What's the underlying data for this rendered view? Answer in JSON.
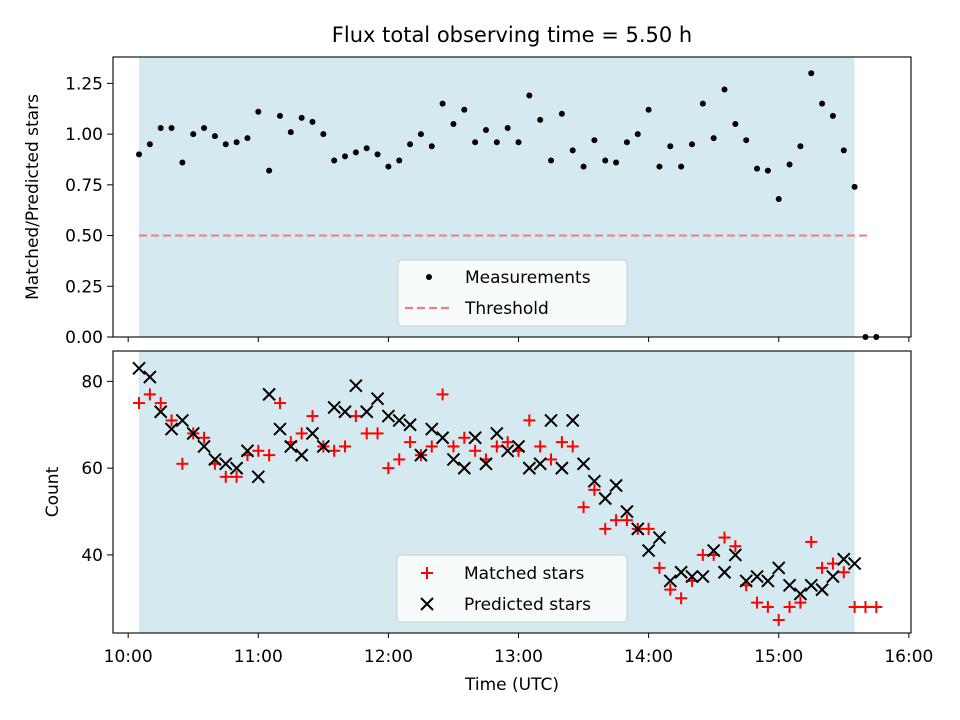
{
  "chart_data": {
    "title": "Flux total observing time = 5.50 h",
    "xlabel": "Time (UTC)",
    "x_ticks": [
      "10:00",
      "11:00",
      "12:00",
      "13:00",
      "14:00",
      "15:00",
      "16:00"
    ],
    "xlim": [
      "09:53",
      "16:01"
    ],
    "observing_window": {
      "start": "10:05",
      "end": "15:35",
      "color": "#d4eaf0"
    },
    "panels": [
      {
        "type": "scatter",
        "ylabel": "Matched/Predicted stars",
        "ylim": [
          0,
          1.38
        ],
        "y_ticks": [
          "0.00",
          "0.25",
          "0.50",
          "0.75",
          "1.00",
          "1.25"
        ],
        "legend": {
          "position": "lower-center",
          "entries": [
            "Measurements",
            "Threshold"
          ]
        },
        "threshold": {
          "name": "Threshold",
          "value": 0.5,
          "x_start": "10:05",
          "x_end": "15:41",
          "color": "#f08080"
        },
        "series": [
          {
            "name": "Measurements",
            "marker": "dot",
            "color": "#000000",
            "points": [
              [
                "10:05",
                0.9
              ],
              [
                "10:10",
                0.95
              ],
              [
                "10:15",
                1.03
              ],
              [
                "10:20",
                1.03
              ],
              [
                "10:25",
                0.86
              ],
              [
                "10:30",
                1.0
              ],
              [
                "10:35",
                1.03
              ],
              [
                "10:40",
                0.99
              ],
              [
                "10:45",
                0.95
              ],
              [
                "10:50",
                0.96
              ],
              [
                "10:55",
                0.98
              ],
              [
                "11:00",
                1.11
              ],
              [
                "11:05",
                0.82
              ],
              [
                "11:10",
                1.09
              ],
              [
                "11:15",
                1.01
              ],
              [
                "11:20",
                1.08
              ],
              [
                "11:25",
                1.06
              ],
              [
                "11:30",
                1.0
              ],
              [
                "11:35",
                0.87
              ],
              [
                "11:40",
                0.89
              ],
              [
                "11:45",
                0.91
              ],
              [
                "11:50",
                0.93
              ],
              [
                "11:55",
                0.9
              ],
              [
                "12:00",
                0.84
              ],
              [
                "12:05",
                0.87
              ],
              [
                "12:10",
                0.95
              ],
              [
                "12:15",
                1.0
              ],
              [
                "12:20",
                0.94
              ],
              [
                "12:25",
                1.15
              ],
              [
                "12:30",
                1.05
              ],
              [
                "12:35",
                1.12
              ],
              [
                "12:40",
                0.96
              ],
              [
                "12:45",
                1.02
              ],
              [
                "12:50",
                0.96
              ],
              [
                "12:55",
                1.03
              ],
              [
                "13:00",
                0.96
              ],
              [
                "13:05",
                1.19
              ],
              [
                "13:10",
                1.07
              ],
              [
                "13:15",
                0.87
              ],
              [
                "13:20",
                1.1
              ],
              [
                "13:25",
                0.92
              ],
              [
                "13:30",
                0.84
              ],
              [
                "13:35",
                0.97
              ],
              [
                "13:40",
                0.87
              ],
              [
                "13:45",
                0.86
              ],
              [
                "13:50",
                0.96
              ],
              [
                "13:55",
                1.0
              ],
              [
                "14:00",
                1.12
              ],
              [
                "14:05",
                0.84
              ],
              [
                "14:10",
                0.94
              ],
              [
                "14:15",
                0.84
              ],
              [
                "14:20",
                0.95
              ],
              [
                "14:25",
                1.15
              ],
              [
                "14:30",
                0.98
              ],
              [
                "14:35",
                1.22
              ],
              [
                "14:40",
                1.05
              ],
              [
                "14:45",
                0.97
              ],
              [
                "14:50",
                0.83
              ],
              [
                "14:55",
                0.82
              ],
              [
                "15:00",
                0.68
              ],
              [
                "15:05",
                0.85
              ],
              [
                "15:10",
                0.94
              ],
              [
                "15:15",
                1.3
              ],
              [
                "15:20",
                1.15
              ],
              [
                "15:25",
                1.09
              ],
              [
                "15:30",
                0.92
              ],
              [
                "15:35",
                0.74
              ],
              [
                "15:40",
                0.0
              ],
              [
                "15:45",
                0.0
              ]
            ]
          }
        ]
      },
      {
        "type": "scatter",
        "ylabel": "Count",
        "ylim": [
          22,
          87
        ],
        "y_ticks": [
          "40",
          "60",
          "80"
        ],
        "legend": {
          "position": "lower-center",
          "entries": [
            "Matched stars",
            "Predicted stars"
          ]
        },
        "series": [
          {
            "name": "Matched stars",
            "marker": "plus",
            "color": "#ff0000",
            "points": [
              [
                "10:05",
                75
              ],
              [
                "10:10",
                77
              ],
              [
                "10:15",
                75
              ],
              [
                "10:20",
                71
              ],
              [
                "10:25",
                61
              ],
              [
                "10:30",
                68
              ],
              [
                "10:35",
                67
              ],
              [
                "10:40",
                61
              ],
              [
                "10:45",
                58
              ],
              [
                "10:50",
                58
              ],
              [
                "10:55",
                63
              ],
              [
                "11:00",
                64
              ],
              [
                "11:05",
                63
              ],
              [
                "11:10",
                75
              ],
              [
                "11:15",
                66
              ],
              [
                "11:20",
                68
              ],
              [
                "11:25",
                72
              ],
              [
                "11:30",
                65
              ],
              [
                "11:35",
                64
              ],
              [
                "11:40",
                65
              ],
              [
                "11:45",
                72
              ],
              [
                "11:50",
                68
              ],
              [
                "11:55",
                68
              ],
              [
                "12:00",
                60
              ],
              [
                "12:05",
                62
              ],
              [
                "12:10",
                66
              ],
              [
                "12:15",
                63
              ],
              [
                "12:20",
                65
              ],
              [
                "12:25",
                77
              ],
              [
                "12:30",
                65
              ],
              [
                "12:35",
                67
              ],
              [
                "12:40",
                64
              ],
              [
                "12:45",
                62
              ],
              [
                "12:50",
                65
              ],
              [
                "12:55",
                66
              ],
              [
                "13:00",
                64
              ],
              [
                "13:05",
                71
              ],
              [
                "13:10",
                65
              ],
              [
                "13:15",
                62
              ],
              [
                "13:20",
                66
              ],
              [
                "13:25",
                65
              ],
              [
                "13:30",
                51
              ],
              [
                "13:35",
                55
              ],
              [
                "13:40",
                46
              ],
              [
                "13:45",
                48
              ],
              [
                "13:50",
                48
              ],
              [
                "13:55",
                46
              ],
              [
                "14:00",
                46
              ],
              [
                "14:05",
                37
              ],
              [
                "14:10",
                32
              ],
              [
                "14:15",
                30
              ],
              [
                "14:20",
                34
              ],
              [
                "14:25",
                40
              ],
              [
                "14:30",
                40
              ],
              [
                "14:35",
                44
              ],
              [
                "14:40",
                42
              ],
              [
                "14:45",
                33
              ],
              [
                "14:50",
                29
              ],
              [
                "14:55",
                28
              ],
              [
                "15:00",
                25
              ],
              [
                "15:05",
                28
              ],
              [
                "15:10",
                29
              ],
              [
                "15:15",
                43
              ],
              [
                "15:20",
                37
              ],
              [
                "15:25",
                38
              ],
              [
                "15:30",
                36
              ],
              [
                "15:35",
                28
              ],
              [
                "15:40",
                28
              ],
              [
                "15:45",
                28
              ]
            ]
          },
          {
            "name": "Predicted stars",
            "marker": "x",
            "color": "#000000",
            "points": [
              [
                "10:05",
                83
              ],
              [
                "10:10",
                81
              ],
              [
                "10:15",
                73
              ],
              [
                "10:20",
                69
              ],
              [
                "10:25",
                71
              ],
              [
                "10:30",
                68
              ],
              [
                "10:35",
                65
              ],
              [
                "10:40",
                62
              ],
              [
                "10:45",
                61
              ],
              [
                "10:50",
                60
              ],
              [
                "10:55",
                64
              ],
              [
                "11:00",
                58
              ],
              [
                "11:05",
                77
              ],
              [
                "11:10",
                69
              ],
              [
                "11:15",
                65
              ],
              [
                "11:20",
                63
              ],
              [
                "11:25",
                68
              ],
              [
                "11:30",
                65
              ],
              [
                "11:35",
                74
              ],
              [
                "11:40",
                73
              ],
              [
                "11:45",
                79
              ],
              [
                "11:50",
                73
              ],
              [
                "11:55",
                76
              ],
              [
                "12:00",
                72
              ],
              [
                "12:05",
                71
              ],
              [
                "12:10",
                70
              ],
              [
                "12:15",
                63
              ],
              [
                "12:20",
                69
              ],
              [
                "12:25",
                67
              ],
              [
                "12:30",
                62
              ],
              [
                "12:35",
                60
              ],
              [
                "12:40",
                67
              ],
              [
                "12:45",
                61
              ],
              [
                "12:50",
                68
              ],
              [
                "12:55",
                64
              ],
              [
                "13:00",
                65
              ],
              [
                "13:05",
                60
              ],
              [
                "13:10",
                61
              ],
              [
                "13:15",
                71
              ],
              [
                "13:20",
                60
              ],
              [
                "13:25",
                71
              ],
              [
                "13:30",
                61
              ],
              [
                "13:35",
                57
              ],
              [
                "13:40",
                53
              ],
              [
                "13:45",
                56
              ],
              [
                "13:50",
                50
              ],
              [
                "13:55",
                46
              ],
              [
                "14:00",
                41
              ],
              [
                "14:05",
                44
              ],
              [
                "14:10",
                34
              ],
              [
                "14:15",
                36
              ],
              [
                "14:20",
                35
              ],
              [
                "14:25",
                35
              ],
              [
                "14:30",
                41
              ],
              [
                "14:35",
                36
              ],
              [
                "14:40",
                40
              ],
              [
                "14:45",
                34
              ],
              [
                "14:50",
                35
              ],
              [
                "14:55",
                34
              ],
              [
                "15:00",
                37
              ],
              [
                "15:05",
                33
              ],
              [
                "15:10",
                31
              ],
              [
                "15:15",
                33
              ],
              [
                "15:20",
                32
              ],
              [
                "15:25",
                35
              ],
              [
                "15:30",
                39
              ],
              [
                "15:35",
                38
              ]
            ]
          }
        ]
      }
    ]
  }
}
